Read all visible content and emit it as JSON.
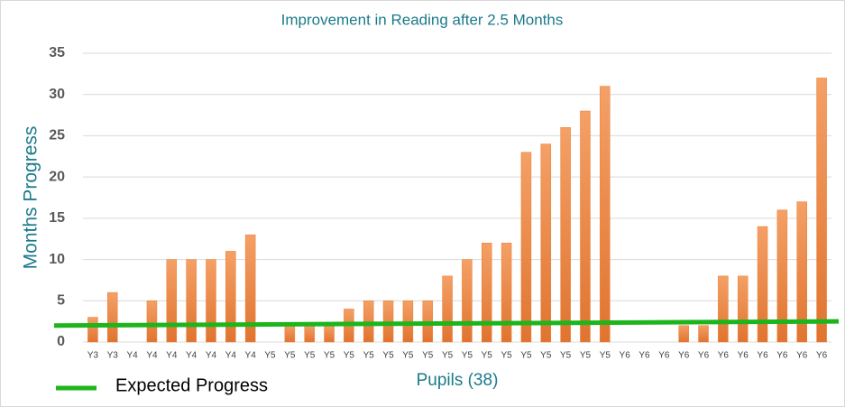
{
  "chart_data": {
    "type": "bar",
    "title": "Improvement in Reading after 2.5  Months",
    "x_label": "Pupils (38)",
    "y_label": "Months Progress",
    "categories": [
      "Y3",
      "Y3",
      "Y4",
      "Y4",
      "Y4",
      "Y4",
      "Y4",
      "Y4",
      "Y4",
      "Y5",
      "Y5",
      "Y5",
      "Y5",
      "Y5",
      "Y5",
      "Y5",
      "Y5",
      "Y5",
      "Y5",
      "Y5",
      "Y5",
      "Y5",
      "Y5",
      "Y5",
      "Y5",
      "Y5",
      "Y5",
      "Y6",
      "Y6",
      "Y6",
      "Y6",
      "Y6",
      "Y6",
      "Y6",
      "Y6",
      "Y6",
      "Y6",
      "Y6"
    ],
    "values": [
      3,
      6,
      0,
      5,
      10,
      10,
      10,
      11,
      13,
      0,
      2,
      2,
      2,
      4,
      5,
      5,
      5,
      5,
      8,
      10,
      12,
      12,
      23,
      24,
      26,
      28,
      31,
      0,
      0,
      0,
      2,
      2,
      8,
      8,
      14,
      16,
      17,
      32
    ],
    "color": "#ed7d31",
    "expected": {
      "name": "Expected Progress",
      "color": "#1cb51c",
      "values": [
        2,
        2.5
      ]
    },
    "ylim": [
      0,
      35
    ],
    "yticks": [
      0,
      5,
      10,
      15,
      20,
      25,
      30,
      35
    ],
    "grid": true
  }
}
